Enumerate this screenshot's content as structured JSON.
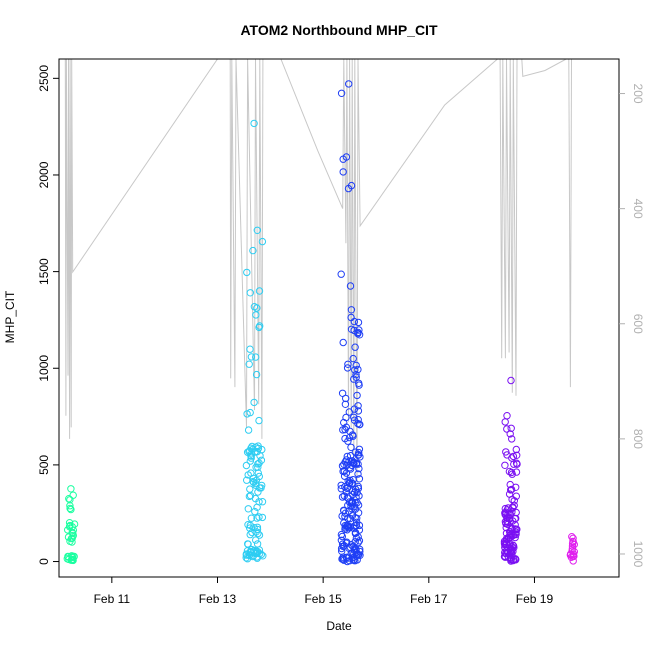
{
  "chart_data": {
    "type": "scatter",
    "title": "ATOM2 Northbound MHP_CIT",
    "xlabel": "Date",
    "ylabel": "MHP_CIT",
    "xlim": [
      10.0,
      20.6
    ],
    "ylim": [
      -80,
      2600
    ],
    "x_ticks": [
      {
        "value": 11,
        "label": "Feb 11"
      },
      {
        "value": 13,
        "label": "Feb 13"
      },
      {
        "value": 15,
        "label": "Feb 15"
      },
      {
        "value": 17,
        "label": "Feb 17"
      },
      {
        "value": 19,
        "label": "Feb 19"
      }
    ],
    "y_ticks": [
      0,
      500,
      1000,
      1500,
      2000,
      2500
    ],
    "right_axis": {
      "ylim": [
        1040,
        140
      ],
      "ticks": [
        200,
        400,
        600,
        800,
        1000
      ],
      "color": "#b0b0b0"
    },
    "clusters": [
      {
        "center_x": 10.22,
        "spread_x": 0.08,
        "color": "#1affa0",
        "groups": [
          {
            "min": 0,
            "max": 30,
            "count": 14
          },
          {
            "min": 100,
            "max": 300,
            "count": 18
          },
          {
            "min": 300,
            "max": 390,
            "count": 4
          }
        ]
      },
      {
        "center_x": 13.7,
        "spread_x": 0.16,
        "color": "#2ecdf2",
        "groups": [
          {
            "min": 0,
            "max": 60,
            "count": 25
          },
          {
            "min": 60,
            "max": 300,
            "count": 24
          },
          {
            "min": 300,
            "max": 600,
            "count": 45
          },
          {
            "min": 650,
            "max": 1000,
            "count": 6
          },
          {
            "min": 1000,
            "max": 1500,
            "count": 12
          },
          {
            "min": 1500,
            "max": 1730,
            "count": 3
          },
          {
            "min": 2260,
            "max": 2270,
            "count": 1
          }
        ]
      },
      {
        "center_x": 15.52,
        "spread_x": 0.18,
        "color": "#1f3ff5",
        "groups": [
          {
            "min": 0,
            "max": 80,
            "count": 35
          },
          {
            "min": 80,
            "max": 300,
            "count": 50
          },
          {
            "min": 300,
            "max": 550,
            "count": 60
          },
          {
            "min": 550,
            "max": 800,
            "count": 25
          },
          {
            "min": 800,
            "max": 1320,
            "count": 28
          },
          {
            "min": 1420,
            "max": 1560,
            "count": 2
          },
          {
            "min": 1890,
            "max": 2130,
            "count": 5
          },
          {
            "min": 2400,
            "max": 2500,
            "count": 2
          }
        ]
      },
      {
        "center_x": 18.55,
        "spread_x": 0.12,
        "color": "#7a10f2",
        "groups": [
          {
            "min": 0,
            "max": 80,
            "count": 30
          },
          {
            "min": 80,
            "max": 300,
            "count": 60
          },
          {
            "min": 300,
            "max": 560,
            "count": 20
          },
          {
            "min": 560,
            "max": 760,
            "count": 8
          },
          {
            "min": 930,
            "max": 940,
            "count": 1
          }
        ]
      },
      {
        "center_x": 19.72,
        "spread_x": 0.04,
        "color": "#e020ee",
        "groups": [
          {
            "min": 0,
            "max": 60,
            "count": 12
          },
          {
            "min": 60,
            "max": 140,
            "count": 8
          }
        ]
      }
    ],
    "depth_line": {
      "color": "#c8c8c8",
      "points": [
        [
          10.12,
          140
        ],
        [
          10.13,
          760
        ],
        [
          10.14,
          140
        ],
        [
          10.17,
          690
        ],
        [
          10.18,
          140
        ],
        [
          10.2,
          800
        ],
        [
          10.21,
          140
        ],
        [
          10.23,
          780
        ],
        [
          10.24,
          140
        ],
        [
          10.26,
          510
        ],
        [
          13.0,
          140
        ],
        [
          13.24,
          140
        ],
        [
          13.25,
          695
        ],
        [
          13.27,
          140
        ],
        [
          13.33,
          710
        ],
        [
          13.35,
          140
        ],
        [
          13.55,
          780
        ],
        [
          13.57,
          140
        ],
        [
          13.7,
          750
        ],
        [
          13.72,
          140
        ],
        [
          13.78,
          740
        ],
        [
          13.8,
          140
        ],
        [
          13.84,
          800
        ],
        [
          13.86,
          140
        ],
        [
          14.2,
          140
        ],
        [
          14.9,
          300
        ],
        [
          15.37,
          400
        ],
        [
          15.39,
          140
        ],
        [
          15.43,
          460
        ],
        [
          15.45,
          140
        ],
        [
          15.48,
          770
        ],
        [
          15.5,
          140
        ],
        [
          15.53,
          780
        ],
        [
          15.55,
          140
        ],
        [
          15.58,
          840
        ],
        [
          15.6,
          140
        ],
        [
          15.64,
          900
        ],
        [
          15.66,
          140
        ],
        [
          15.7,
          430
        ],
        [
          17.3,
          220
        ],
        [
          18.3,
          140
        ],
        [
          18.35,
          140
        ],
        [
          18.38,
          660
        ],
        [
          18.4,
          140
        ],
        [
          18.45,
          660
        ],
        [
          18.47,
          140
        ],
        [
          18.52,
          650
        ],
        [
          18.54,
          140
        ],
        [
          18.58,
          720
        ],
        [
          18.6,
          140
        ],
        [
          18.65,
          725
        ],
        [
          18.67,
          140
        ],
        [
          18.76,
          140
        ],
        [
          18.78,
          170
        ],
        [
          19.2,
          160
        ],
        [
          19.6,
          140
        ],
        [
          19.65,
          140
        ],
        [
          19.68,
          710
        ],
        [
          19.7,
          140
        ],
        [
          20.6,
          140
        ]
      ]
    }
  }
}
